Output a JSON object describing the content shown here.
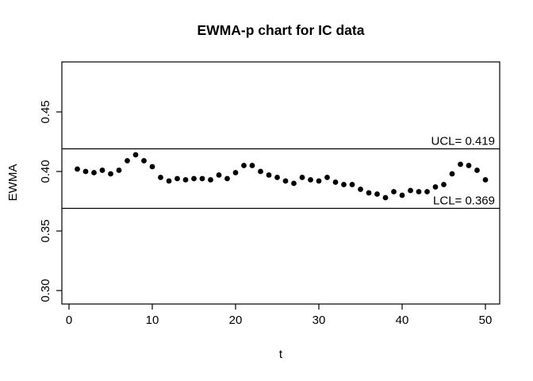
{
  "figure": {
    "background_color": "#ffffff",
    "foreground_color": "#000000"
  },
  "chart_data": {
    "type": "scatter",
    "title": "EWMA-p chart for IC data",
    "xlabel": "t",
    "ylabel": "EWMA",
    "x": [
      1,
      2,
      3,
      4,
      5,
      6,
      7,
      8,
      9,
      10,
      11,
      12,
      13,
      14,
      15,
      16,
      17,
      18,
      19,
      20,
      21,
      22,
      23,
      24,
      25,
      26,
      27,
      28,
      29,
      30,
      31,
      32,
      33,
      34,
      35,
      36,
      37,
      38,
      39,
      40,
      41,
      42,
      43,
      44,
      45,
      46,
      47,
      48,
      49,
      50
    ],
    "values": [
      0.402,
      0.4,
      0.399,
      0.401,
      0.398,
      0.401,
      0.409,
      0.414,
      0.409,
      0.404,
      0.395,
      0.392,
      0.394,
      0.393,
      0.394,
      0.394,
      0.393,
      0.397,
      0.394,
      0.399,
      0.405,
      0.405,
      0.4,
      0.397,
      0.395,
      0.392,
      0.39,
      0.395,
      0.393,
      0.392,
      0.395,
      0.391,
      0.389,
      0.389,
      0.385,
      0.382,
      0.381,
      0.378,
      0.383,
      0.38,
      0.384,
      0.383,
      0.383,
      0.387,
      0.389,
      0.398,
      0.406,
      0.405,
      0.401,
      0.393
    ],
    "xlim": [
      -0.857,
      51.714
    ],
    "ylim": [
      0.2887,
      0.492
    ],
    "xticks": [
      0,
      10,
      20,
      30,
      40,
      50
    ],
    "yticks": [
      {
        "v": 0.3,
        "label": "0.30"
      },
      {
        "v": 0.35,
        "label": "0.35"
      },
      {
        "v": 0.4,
        "label": "0.40"
      },
      {
        "v": 0.45,
        "label": "0.45"
      }
    ],
    "grid": false,
    "legend": "none",
    "control_limits": {
      "ucl": {
        "value": 0.419,
        "label": "UCL= 0.419"
      },
      "lcl": {
        "value": 0.369,
        "label": "LCL= 0.369"
      }
    },
    "point_color": "#000000",
    "line_color": "#000000"
  }
}
